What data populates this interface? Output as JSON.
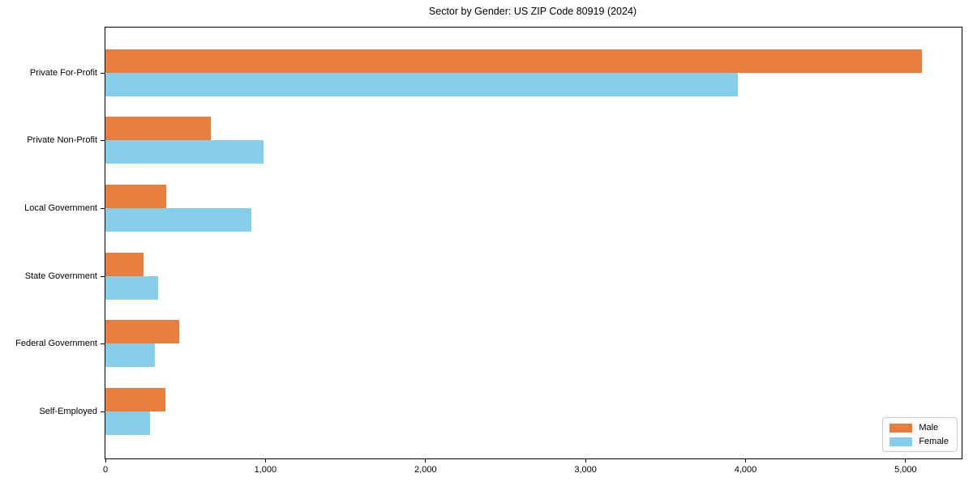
{
  "title": "Sector by Gender: US ZIP Code 80919 (2024)",
  "chart_data": {
    "type": "bar",
    "orientation": "horizontal",
    "title": "Sector by Gender: US ZIP Code 80919 (2024)",
    "categories": [
      "Private For-Profit",
      "Private Non-Profit",
      "Local Government",
      "State Government",
      "Federal Government",
      "Self-Employed"
    ],
    "series": [
      {
        "name": "Male",
        "color": "#E87D3D",
        "values": [
          5100,
          660,
          380,
          240,
          460,
          375
        ]
      },
      {
        "name": "Female",
        "color": "#87CEEB",
        "values": [
          3950,
          990,
          910,
          330,
          310,
          280
        ]
      }
    ],
    "xlabel": "",
    "ylabel": "",
    "xlim": [
      0,
      5350
    ],
    "x_ticks": [
      0,
      1000,
      2000,
      3000,
      4000,
      5000
    ],
    "x_tick_labels": [
      "0",
      "1,000",
      "2,000",
      "3,000",
      "4,000",
      "5,000"
    ],
    "grid": false,
    "legend_position": "lower right",
    "background_color": "#ffffff",
    "axis_color": "#000000"
  }
}
